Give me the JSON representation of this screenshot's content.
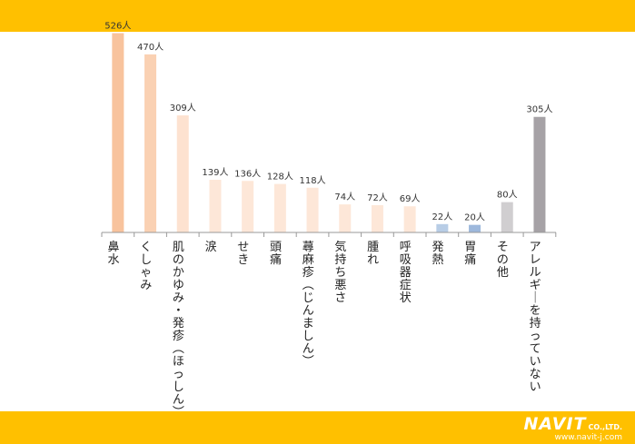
{
  "chart_data": {
    "type": "bar",
    "categories": [
      "鼻水",
      "くしゃみ",
      "肌のかゆみ・発疹(ほっしん)",
      "涙",
      "せき",
      "頭痛",
      "蕁麻疹(じんましん)",
      "気持ち悪さ",
      "腫れ",
      "呼吸器症状",
      "発熱",
      "胃痛",
      "その他",
      "アレルギーを持っていない"
    ],
    "values": [
      526,
      470,
      309,
      139,
      136,
      128,
      118,
      74,
      72,
      69,
      22,
      20,
      80,
      305
    ],
    "value_labels": [
      "526人",
      "470人",
      "309人",
      "139人",
      "136人",
      "128人",
      "118人",
      "74人",
      "72人",
      "69人",
      "22人",
      "20人",
      "80人",
      "305人"
    ],
    "colors": [
      "#f8c39d",
      "#fad1b3",
      "#fde2d0",
      "#fde7d8",
      "#fde7d8",
      "#fde7d8",
      "#fde7d8",
      "#fde7d8",
      "#fde7d8",
      "#fde7d8",
      "#b8cde6",
      "#9db8dc",
      "#d0ced0",
      "#a6a2a6"
    ],
    "ylim": [
      0,
      580
    ],
    "grid": false,
    "legend": "none"
  },
  "branding": {
    "logo": "NAVIT",
    "company_suffix": "CO.,LTD.",
    "url": "www.navit-j.com"
  }
}
